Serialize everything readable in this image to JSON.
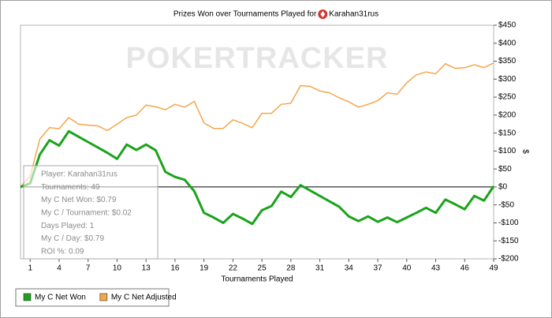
{
  "chart_data": {
    "type": "line",
    "title": "Prizes Won over Tournaments Played for",
    "player": "Karahan31rus",
    "watermark": "POKERTRACKER",
    "xlabel": "Tournaments Played",
    "ylabel": "$",
    "x": [
      0,
      1,
      2,
      3,
      4,
      5,
      6,
      7,
      8,
      9,
      10,
      11,
      12,
      13,
      14,
      15,
      16,
      17,
      18,
      19,
      20,
      21,
      22,
      23,
      24,
      25,
      26,
      27,
      28,
      29,
      30,
      31,
      32,
      33,
      34,
      35,
      36,
      37,
      38,
      39,
      40,
      41,
      42,
      43,
      44,
      45,
      46,
      47,
      48,
      49
    ],
    "xlim": [
      0,
      49
    ],
    "xticks": [
      1,
      4,
      7,
      10,
      13,
      16,
      19,
      22,
      25,
      28,
      31,
      34,
      37,
      40,
      43,
      46,
      49
    ],
    "ylim": [
      -200,
      450
    ],
    "yticks": [
      {
        "value": -200,
        "label": "-$200"
      },
      {
        "value": -150,
        "label": "-$150"
      },
      {
        "value": -100,
        "label": "-$100"
      },
      {
        "value": -50,
        "label": "-$50"
      },
      {
        "value": 0,
        "label": "$0"
      },
      {
        "value": 50,
        "label": "$50"
      },
      {
        "value": 100,
        "label": "$100"
      },
      {
        "value": 150,
        "label": "$150"
      },
      {
        "value": 200,
        "label": "$200"
      },
      {
        "value": 250,
        "label": "$250"
      },
      {
        "value": 300,
        "label": "$300"
      },
      {
        "value": 350,
        "label": "$350"
      },
      {
        "value": 400,
        "label": "$400"
      },
      {
        "value": 450,
        "label": "$450"
      }
    ],
    "zero_line": true,
    "series": [
      {
        "name": "My C Net Won",
        "color": "#1aa31a",
        "values": [
          0,
          10,
          90,
          130,
          115,
          155,
          140,
          125,
          110,
          95,
          78,
          118,
          103,
          118,
          102,
          42,
          28,
          20,
          -12,
          -72,
          -85,
          -100,
          -75,
          -88,
          -103,
          -65,
          -53,
          -13,
          -28,
          5,
          -10,
          -25,
          -40,
          -55,
          -82,
          -95,
          -82,
          -97,
          -85,
          -98,
          -85,
          -72,
          -58,
          -72,
          -35,
          -48,
          -62,
          -25,
          -38,
          2
        ]
      },
      {
        "name": "My C Net Adjusted",
        "color": "#f5a64a",
        "values": [
          0,
          30,
          133,
          165,
          162,
          193,
          175,
          172,
          170,
          157,
          175,
          193,
          200,
          228,
          223,
          215,
          230,
          222,
          238,
          178,
          163,
          163,
          187,
          177,
          165,
          205,
          205,
          230,
          233,
          282,
          280,
          267,
          262,
          248,
          237,
          222,
          230,
          240,
          262,
          258,
          290,
          312,
          320,
          315,
          343,
          330,
          332,
          340,
          332,
          345
        ]
      }
    ],
    "tooltip": [
      "Player: Karahan31rus",
      "Tournaments: 49",
      "My C Net Won: $0.79",
      "My C / Tournament: $0.02",
      "Days Played: 1",
      "My C / Day: $0.79",
      "ROI %: 0.09"
    ]
  }
}
